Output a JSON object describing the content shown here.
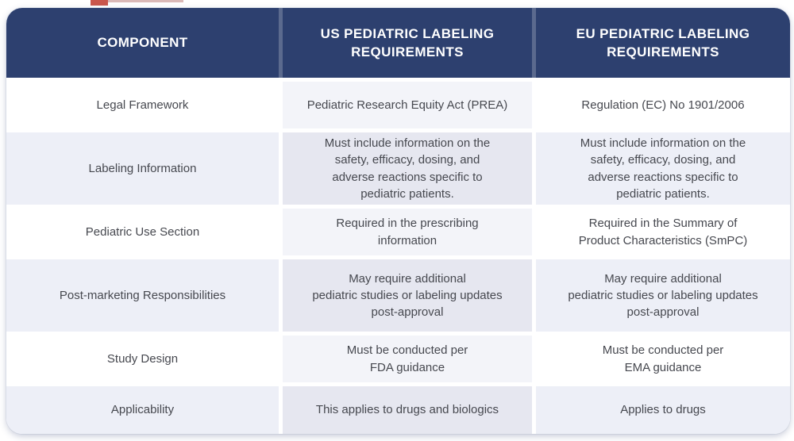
{
  "header": {
    "component": "COMPONENT",
    "us": "US PEDIATRIC LABELING\nREQUIREMENTS",
    "eu": "EU PEDIATRIC LABELING\nREQUIREMENTS"
  },
  "rows": [
    {
      "component": "Legal Framework",
      "us": "Pediatric Research Equity Act (PREA)",
      "eu": "Regulation (EC) No 1901/2006"
    },
    {
      "component": "Labeling Information",
      "us": "Must include information on the\nsafety, efficacy, dosing, and\nadverse reactions specific to\npediatric patients.",
      "eu": "Must include information on the\nsafety, efficacy, dosing, and\nadverse reactions specific to\npediatric patients."
    },
    {
      "component": "Pediatric Use Section",
      "us": "Required in the prescribing\ninformation",
      "eu": "Required in the Summary of\nProduct Characteristics (SmPC)"
    },
    {
      "component": "Post-marketing Responsibilities",
      "us": "May require additional\npediatric studies or labeling updates\npost-approval",
      "eu": "May require additional\npediatric studies or labeling updates\npost-approval"
    },
    {
      "component": "Study Design",
      "us": "Must be conducted per\nFDA guidance",
      "eu": "Must be conducted per\nEMA guidance"
    },
    {
      "component": "Applicability",
      "us": "This applies to drugs and biologics",
      "eu": "Applies to drugs"
    }
  ],
  "colors": {
    "header_bg": "#2d406f",
    "header_text": "#ffffff",
    "row_bg": "#ffffff",
    "row_alt_bg": "#edeff7",
    "mid_col_bg": "#f3f4f9",
    "mid_col_alt_bg": "#e6e7f0",
    "body_text": "#46484f",
    "artifact_red": "#c1392d"
  }
}
